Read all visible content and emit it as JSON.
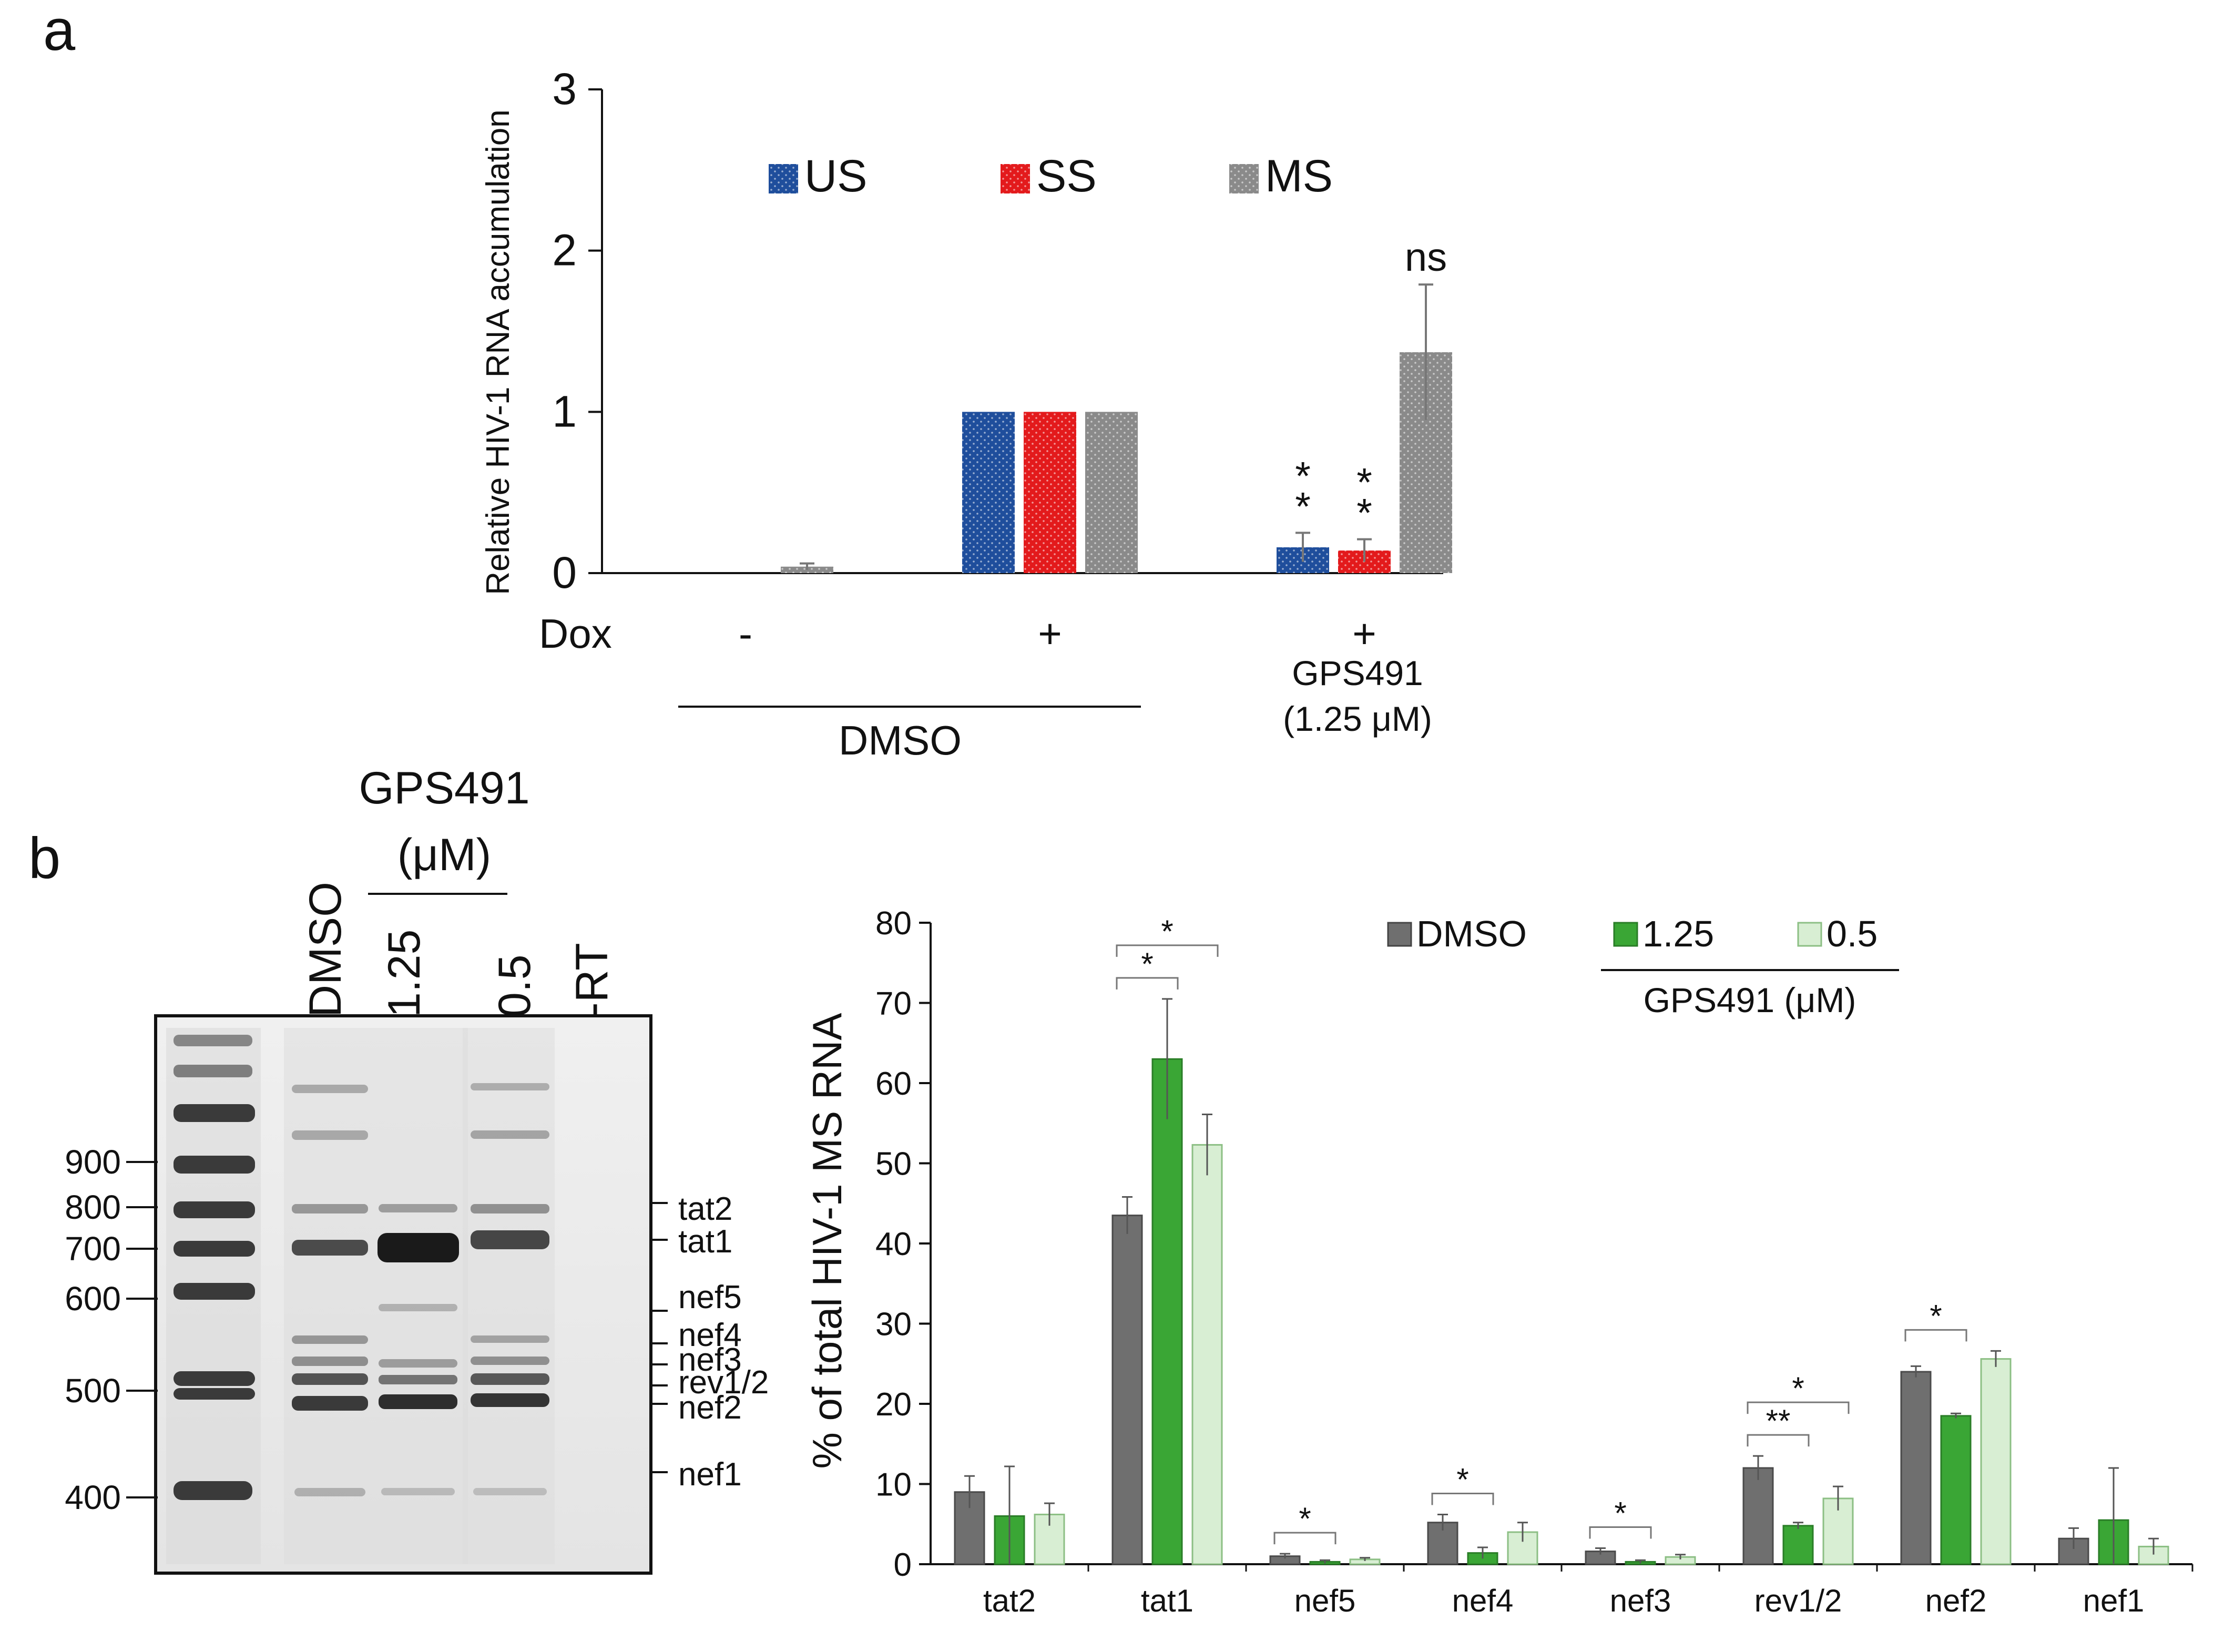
{
  "panel_a": {
    "label": "a",
    "ylabel": "Relative HIV-1 RNA accumulation",
    "ylim": [
      0,
      3
    ],
    "yticks": [
      "0",
      "1",
      "2",
      "3"
    ],
    "legend": [
      "US",
      "SS",
      "MS"
    ],
    "dox_label": "Dox",
    "dox_values": [
      "-",
      "+",
      "+"
    ],
    "dmso_label": "DMSO",
    "treatment_line1": "GPS491",
    "treatment_line2": "(1.25 μM)",
    "significance": [
      "*\n*",
      "*\n*",
      "ns"
    ]
  },
  "panel_b": {
    "label": "b",
    "gel": {
      "header_line1": "GPS491",
      "header_line2": "(μM)",
      "lanes": [
        "DMSO",
        "1.25",
        "0.5",
        "-RT"
      ],
      "markers": [
        "900",
        "800",
        "700",
        "600",
        "500",
        "400"
      ],
      "bands": [
        "tat2",
        "tat1",
        "nef5",
        "nef4",
        "nef3",
        "rev1/2",
        "nef2",
        "nef1"
      ]
    },
    "legend": [
      "DMSO",
      "1.25",
      "0.5"
    ],
    "legend_group_label": "GPS491 (μM)",
    "ylabel": "% of total HIV-1 MS RNA",
    "yticks": [
      "0",
      "10",
      "20",
      "30",
      "40",
      "50",
      "60",
      "70",
      "80"
    ]
  },
  "colors": {
    "US": "#1f4e9c",
    "SS": "#e31a1c",
    "MS": "#8a8a8a",
    "DMSO": "#6f6f6f",
    "GPS_1_25": "#3aa635",
    "GPS_0_5": "#d8eed3"
  },
  "chart_data": [
    {
      "type": "bar",
      "title": "",
      "ylabel": "Relative HIV-1 RNA accumulation",
      "ylim": [
        0,
        3
      ],
      "categories": [
        "-",
        "+",
        "+ GPS491 (1.25 μM)"
      ],
      "series": [
        {
          "name": "US",
          "values": [
            0.0,
            1.0,
            0.16
          ],
          "errors": [
            0.0,
            0.0,
            0.09
          ]
        },
        {
          "name": "SS",
          "values": [
            0.0,
            1.0,
            0.14
          ],
          "errors": [
            0.0,
            0.0,
            0.07
          ]
        },
        {
          "name": "MS",
          "values": [
            0.04,
            1.0,
            1.37
          ],
          "errors": [
            0.02,
            0.0,
            0.42
          ]
        }
      ],
      "legend_position": "top"
    },
    {
      "type": "bar",
      "title": "",
      "ylabel": "% of total HIV-1 MS RNA",
      "ylim": [
        0,
        80
      ],
      "categories": [
        "tat2",
        "tat1",
        "nef5",
        "nef4",
        "nef3",
        "rev1/2",
        "nef2",
        "nef1"
      ],
      "series": [
        {
          "name": "DMSO",
          "values": [
            9,
            43.5,
            1,
            5.2,
            1.6,
            12,
            24,
            3.2
          ],
          "errors": [
            2,
            2.3,
            0.3,
            1,
            0.4,
            1.5,
            0.7,
            1.3
          ]
        },
        {
          "name": "1.25",
          "values": [
            6,
            63,
            0.3,
            1.4,
            0.3,
            4.8,
            18.5,
            5.5
          ],
          "errors": [
            6.2,
            7.5,
            0.2,
            0.7,
            0.2,
            0.4,
            0.3,
            6.5
          ]
        },
        {
          "name": "0.5",
          "values": [
            6.2,
            52.3,
            0.6,
            4,
            0.9,
            8.2,
            25.6,
            2.2
          ],
          "errors": [
            1.4,
            3.8,
            0.2,
            1.2,
            0.3,
            1.5,
            1,
            1
          ]
        }
      ],
      "significance": [
        {
          "category": "tat1",
          "pairs": [
            "DMSO-1.25",
            "DMSO-0.5"
          ],
          "labels": [
            "*",
            "*"
          ]
        },
        {
          "category": "nef5",
          "pairs": [
            "DMSO-1.25"
          ],
          "labels": [
            "*"
          ]
        },
        {
          "category": "nef4",
          "pairs": [
            "DMSO-1.25"
          ],
          "labels": [
            "*"
          ]
        },
        {
          "category": "nef3",
          "pairs": [
            "DMSO-1.25"
          ],
          "labels": [
            "*"
          ]
        },
        {
          "category": "rev1/2",
          "pairs": [
            "DMSO-1.25",
            "DMSO-0.5"
          ],
          "labels": [
            "**",
            "*"
          ]
        },
        {
          "category": "nef2",
          "pairs": [
            "DMSO-1.25"
          ],
          "labels": [
            "*"
          ]
        }
      ],
      "legend_position": "top-right"
    }
  ]
}
